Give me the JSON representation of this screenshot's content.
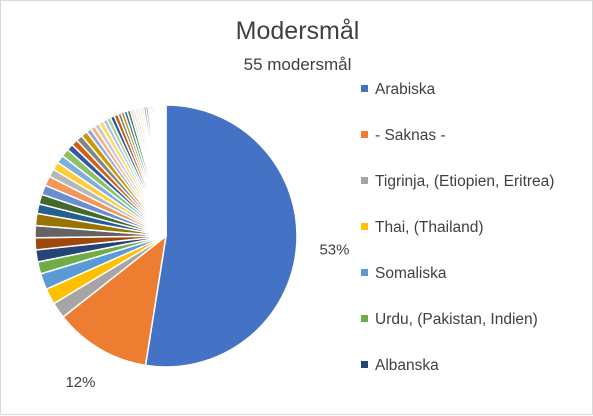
{
  "chart_data": {
    "type": "pie",
    "title": "Modersmål",
    "subtitle": "55 modersmål",
    "series": [
      {
        "name": "Arabiska",
        "value": 53,
        "color": "#4472c4",
        "label": "53%"
      },
      {
        "name": "- Saknas -",
        "value": 12,
        "color": "#ed7d31",
        "label": "12%"
      },
      {
        "name": "Tigrinja, (Etiopien, Eritrea)",
        "value": 2,
        "color": "#a5a5a5"
      },
      {
        "name": "Thai, (Thailand)",
        "value": 2,
        "color": "#ffc000"
      },
      {
        "name": "Somaliska",
        "value": 2,
        "color": "#5b9bd5"
      },
      {
        "name": "Urdu, (Pakistan, Indien)",
        "value": 1.5,
        "color": "#70ad47"
      },
      {
        "name": "Albanska",
        "value": 1.5,
        "color": "#264478"
      },
      {
        "value": 1.5,
        "color": "#9e480e"
      },
      {
        "value": 1.5,
        "color": "#636363"
      },
      {
        "value": 1.5,
        "color": "#997300"
      },
      {
        "value": 1.2,
        "color": "#255e91"
      },
      {
        "value": 1.2,
        "color": "#43682b"
      },
      {
        "value": 1.2,
        "color": "#698ed0"
      },
      {
        "value": 1.2,
        "color": "#f1975a"
      },
      {
        "value": 1,
        "color": "#b7b7b7"
      },
      {
        "value": 1,
        "color": "#ffcd33"
      },
      {
        "value": 1,
        "color": "#7cafdd"
      },
      {
        "value": 1,
        "color": "#8cc168"
      },
      {
        "value": 0.8,
        "color": "#335aa1"
      },
      {
        "value": 0.8,
        "color": "#d26012"
      },
      {
        "value": 0.8,
        "color": "#848484"
      },
      {
        "value": 0.8,
        "color": "#cc9a00"
      },
      {
        "value": 0.6,
        "color": "#8faadc"
      },
      {
        "value": 0.6,
        "color": "#f4b183"
      },
      {
        "value": 0.6,
        "color": "#c9c9c9"
      },
      {
        "value": 0.6,
        "color": "#ffd966"
      },
      {
        "value": 0.5,
        "color": "#9dc3e6"
      },
      {
        "value": 0.5,
        "color": "#a9d18e"
      },
      {
        "value": 0.5,
        "color": "#2f5597"
      },
      {
        "value": 0.5,
        "color": "#c55a11"
      },
      {
        "value": 0.4,
        "color": "#7b7b7b"
      },
      {
        "value": 0.4,
        "color": "#bf9000"
      },
      {
        "value": 0.4,
        "color": "#2e75b6"
      },
      {
        "value": 0.4,
        "color": "#548235"
      },
      {
        "value": 0.3,
        "color": "#b4c7e7"
      },
      {
        "value": 0.3,
        "color": "#f8cbad"
      },
      {
        "value": 0.3,
        "color": "#dbdbdb"
      },
      {
        "value": 0.3,
        "color": "#ffe699"
      },
      {
        "value": 0.25,
        "color": "#bdd7ee"
      },
      {
        "value": 0.25,
        "color": "#c5e0b4"
      },
      {
        "value": 0.25,
        "color": "#203864"
      },
      {
        "value": 0.25,
        "color": "#843c0c"
      },
      {
        "value": 0.2,
        "color": "#525252"
      },
      {
        "value": 0.2,
        "color": "#7f6000"
      },
      {
        "value": 0.2,
        "color": "#1f4e79"
      },
      {
        "value": 0.2,
        "color": "#385723"
      },
      {
        "value": 0.2,
        "color": "#d6dce5"
      },
      {
        "value": 0.2,
        "color": "#fbe5d6"
      },
      {
        "value": 0.15,
        "color": "#ededed"
      },
      {
        "value": 0.15,
        "color": "#fff2cc"
      },
      {
        "value": 0.15,
        "color": "#deebf7"
      },
      {
        "value": 0.15,
        "color": "#e2f0d9"
      },
      {
        "value": 0.15,
        "color": "#8497b0"
      },
      {
        "value": 0.15,
        "color": "#f4b183"
      },
      {
        "value": 0.15,
        "color": "#bfbfbf"
      }
    ],
    "legend_position": "right"
  }
}
